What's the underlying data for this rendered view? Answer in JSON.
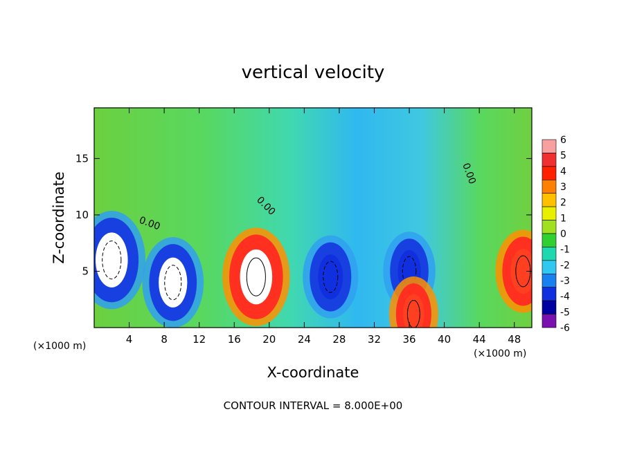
{
  "chart_data": {
    "type": "heatmap",
    "title": "vertical velocity",
    "xlabel": "X-coordinate",
    "ylabel": "Z-coordinate",
    "x_unit_left": "(×1000 m)",
    "x_unit_right": "(×1000 m)",
    "xlim": [
      0,
      50
    ],
    "ylim": [
      0,
      19.5
    ],
    "x_ticks": [
      4,
      8,
      12,
      16,
      20,
      24,
      28,
      32,
      36,
      40,
      44,
      48
    ],
    "y_ticks": [
      5,
      10,
      15
    ],
    "colorbar": {
      "ticks": [
        6,
        5,
        4,
        3,
        2,
        1,
        0,
        -1,
        -2,
        -3,
        -4,
        -5,
        -6
      ],
      "colors": [
        "#f8a0a0",
        "#f03030",
        "#ff2000",
        "#ff8000",
        "#ffc000",
        "#e8f000",
        "#a0e020",
        "#30d030",
        "#20d8b0",
        "#30c8f0",
        "#1880f0",
        "#1030e0",
        "#0000a0",
        "#7a10b0"
      ]
    },
    "contour_interval": "CONTOUR INTERVAL = 8.000E+00",
    "contour_labels": [
      "0.00",
      "0.00",
      "0.00"
    ],
    "cells": [
      {
        "x": 2,
        "z": 6,
        "w": -14
      },
      {
        "x": 9,
        "z": 4,
        "w": -12
      },
      {
        "x": 18.5,
        "z": 4.5,
        "w": 14
      },
      {
        "x": 27,
        "z": 4.5,
        "w": -10
      },
      {
        "x": 36,
        "z": 5,
        "w": -9
      },
      {
        "x": 36.5,
        "z": 1.2,
        "w": 8
      },
      {
        "x": 49,
        "z": 5,
        "w": 10
      }
    ]
  }
}
